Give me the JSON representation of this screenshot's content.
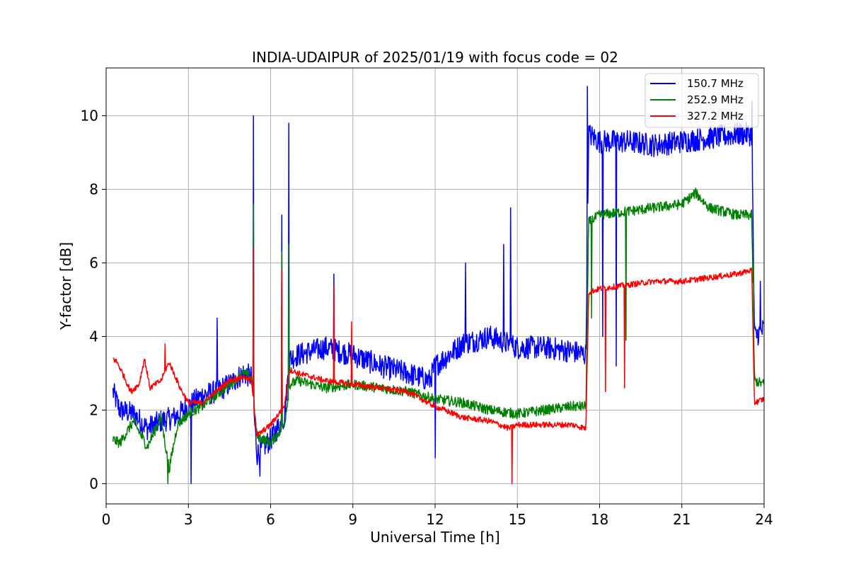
{
  "chart_data": {
    "type": "line",
    "title": "INDIA-UDAIPUR of 2025/01/19 with focus code = 02",
    "xlabel": "Universal Time [h]",
    "ylabel": "Y-factor [dB]",
    "xlim": [
      0,
      24
    ],
    "ylim": [
      -0.55,
      11.3
    ],
    "xticks": [
      0,
      3,
      6,
      9,
      12,
      15,
      18,
      21,
      24
    ],
    "yticks": [
      0,
      2,
      4,
      6,
      8,
      10
    ],
    "grid": true,
    "legend_position": "top-right",
    "series": [
      {
        "name": "150.7 MHz",
        "color": "#0000ff",
        "noise": 0.32,
        "x": [
          0.25,
          0.5,
          1.0,
          1.5,
          2.0,
          2.5,
          3.0,
          3.5,
          4.0,
          4.5,
          5.0,
          5.3,
          5.5,
          6.0,
          6.5,
          6.7,
          7.0,
          8.0,
          9.0,
          10.0,
          11.0,
          11.8,
          12.0,
          13.0,
          14.0,
          15.0,
          16.0,
          17.0,
          17.5,
          17.6,
          18.0,
          19.0,
          20.0,
          21.0,
          22.0,
          23.0,
          23.55,
          23.65,
          24.0
        ],
        "y": [
          2.5,
          2.0,
          1.9,
          1.5,
          1.7,
          1.8,
          2.1,
          2.4,
          2.5,
          2.7,
          3.0,
          2.9,
          0.8,
          1.2,
          1.8,
          3.4,
          3.5,
          3.7,
          3.5,
          3.2,
          3.0,
          2.8,
          3.2,
          3.8,
          4.0,
          3.7,
          3.7,
          3.6,
          3.5,
          9.5,
          9.3,
          9.3,
          9.2,
          9.3,
          9.4,
          9.5,
          9.5,
          4.0,
          4.2
        ]
      },
      {
        "name": "252.9 MHz",
        "color": "#008000",
        "noise": 0.14,
        "x": [
          0.25,
          0.5,
          1.0,
          1.5,
          2.0,
          2.3,
          2.6,
          3.0,
          3.5,
          4.0,
          4.5,
          5.0,
          5.3,
          5.5,
          6.0,
          6.5,
          6.7,
          7.0,
          8.0,
          9.0,
          10.0,
          11.0,
          12.0,
          13.0,
          14.0,
          15.0,
          16.0,
          17.0,
          17.5,
          17.6,
          18.0,
          19.0,
          20.0,
          21.0,
          21.5,
          22.0,
          23.0,
          23.55,
          23.65,
          24.0
        ],
        "y": [
          1.2,
          1.1,
          1.7,
          1.0,
          1.8,
          0.4,
          1.6,
          1.9,
          2.1,
          2.4,
          2.7,
          3.0,
          2.9,
          1.3,
          1.1,
          1.6,
          2.7,
          2.8,
          2.6,
          2.7,
          2.6,
          2.5,
          2.3,
          2.2,
          2.0,
          1.9,
          2.0,
          2.1,
          2.1,
          7.1,
          7.3,
          7.4,
          7.5,
          7.6,
          7.9,
          7.5,
          7.3,
          7.3,
          2.8,
          2.7
        ]
      },
      {
        "name": "327.2 MHz",
        "color": "#ff0000",
        "noise": 0.08,
        "x": [
          0.25,
          0.4,
          0.6,
          0.9,
          1.2,
          1.4,
          1.6,
          2.0,
          2.3,
          2.7,
          3.0,
          3.5,
          4.0,
          4.5,
          5.0,
          5.3,
          5.5,
          6.0,
          6.5,
          6.7,
          7.0,
          8.0,
          9.0,
          10.0,
          11.0,
          12.0,
          13.0,
          14.0,
          14.7,
          15.0,
          16.0,
          17.0,
          17.5,
          17.6,
          18.0,
          19.0,
          20.0,
          21.0,
          22.0,
          23.0,
          23.55,
          23.65,
          24.0
        ],
        "y": [
          3.4,
          3.3,
          3.0,
          2.5,
          2.7,
          3.4,
          2.6,
          2.8,
          3.3,
          2.6,
          2.2,
          2.2,
          2.5,
          2.8,
          2.9,
          2.8,
          1.3,
          1.6,
          2.1,
          3.1,
          3.0,
          2.8,
          2.7,
          2.6,
          2.5,
          2.1,
          1.8,
          1.7,
          1.5,
          1.6,
          1.6,
          1.6,
          1.5,
          5.2,
          5.3,
          5.4,
          5.5,
          5.5,
          5.6,
          5.7,
          5.8,
          2.2,
          2.3
        ]
      }
    ],
    "spikes": [
      {
        "series": 0,
        "x": 5.37,
        "y": 10.0
      },
      {
        "series": 0,
        "x": 6.4,
        "y": 7.3
      },
      {
        "series": 0,
        "x": 6.65,
        "y": 9.8
      },
      {
        "series": 0,
        "x": 4.05,
        "y": 4.5
      },
      {
        "series": 0,
        "x": 8.3,
        "y": 5.7
      },
      {
        "series": 0,
        "x": 14.75,
        "y": 7.5
      },
      {
        "series": 0,
        "x": 14.5,
        "y": 6.5
      },
      {
        "series": 0,
        "x": 13.1,
        "y": 6.0
      },
      {
        "series": 0,
        "x": 5.6,
        "y": 0.2
      },
      {
        "series": 0,
        "x": 3.1,
        "y": 0.0
      },
      {
        "series": 0,
        "x": 12.0,
        "y": 0.7
      },
      {
        "series": 0,
        "x": 17.55,
        "y": 10.8
      },
      {
        "series": 0,
        "x": 18.6,
        "y": 3.2
      },
      {
        "series": 0,
        "x": 18.1,
        "y": 4.0
      },
      {
        "series": 0,
        "x": 23.55,
        "y": 10.4
      },
      {
        "series": 0,
        "x": 23.85,
        "y": 5.5
      },
      {
        "series": 1,
        "x": 5.37,
        "y": 7.6
      },
      {
        "series": 1,
        "x": 6.4,
        "y": 6.3
      },
      {
        "series": 1,
        "x": 6.65,
        "y": 6.5
      },
      {
        "series": 1,
        "x": 2.25,
        "y": 0.0
      },
      {
        "series": 1,
        "x": 18.95,
        "y": 3.9
      },
      {
        "series": 1,
        "x": 17.7,
        "y": 4.5
      },
      {
        "series": 1,
        "x": 23.6,
        "y": 6.0
      },
      {
        "series": 2,
        "x": 5.37,
        "y": 6.4
      },
      {
        "series": 2,
        "x": 6.4,
        "y": 5.8
      },
      {
        "series": 2,
        "x": 8.3,
        "y": 5.4
      },
      {
        "series": 2,
        "x": 8.95,
        "y": 4.4
      },
      {
        "series": 2,
        "x": 2.15,
        "y": 3.8
      },
      {
        "series": 2,
        "x": 14.8,
        "y": 0.0
      },
      {
        "series": 2,
        "x": 18.2,
        "y": 2.5
      },
      {
        "series": 2,
        "x": 18.9,
        "y": 2.6
      }
    ]
  }
}
